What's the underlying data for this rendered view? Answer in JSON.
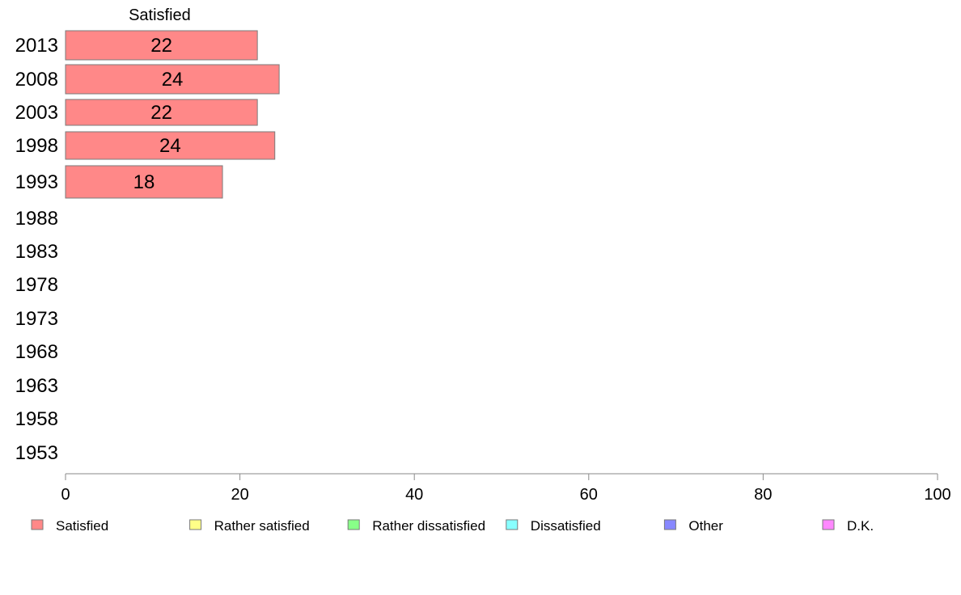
{
  "chart_data": {
    "type": "bar",
    "orientation": "horizontal",
    "stacked": true,
    "categories": [
      "2013",
      "2008",
      "2003",
      "1998",
      "1993",
      "1988",
      "1983",
      "1978",
      "1973",
      "1968",
      "1963",
      "1958",
      "1953"
    ],
    "series": [
      {
        "name": "Satisfied",
        "color": "#ff8888",
        "values": [
          22,
          24.5,
          22,
          24,
          18,
          null,
          null,
          null,
          null,
          null,
          null,
          null,
          null
        ],
        "labels": [
          "22",
          "24",
          "22",
          "24",
          "18",
          null,
          null,
          null,
          null,
          null,
          null,
          null,
          null
        ]
      }
    ],
    "header_label": "Satisfied",
    "xlim": [
      0,
      100
    ],
    "xticks": [
      0,
      20,
      40,
      60,
      80,
      100
    ],
    "grid": false,
    "legend": {
      "position": "bottom",
      "entries": [
        {
          "label": "Satisfied",
          "color": "#ff8888"
        },
        {
          "label": "Rather satisfied",
          "color": "#ffff88"
        },
        {
          "label": "Rather dissatisfied",
          "color": "#88ff88"
        },
        {
          "label": "Dissatisfied",
          "color": "#88ffff"
        },
        {
          "label": "Other",
          "color": "#8888ff"
        },
        {
          "label": "D.K.",
          "color": "#ff88ff"
        }
      ]
    }
  }
}
